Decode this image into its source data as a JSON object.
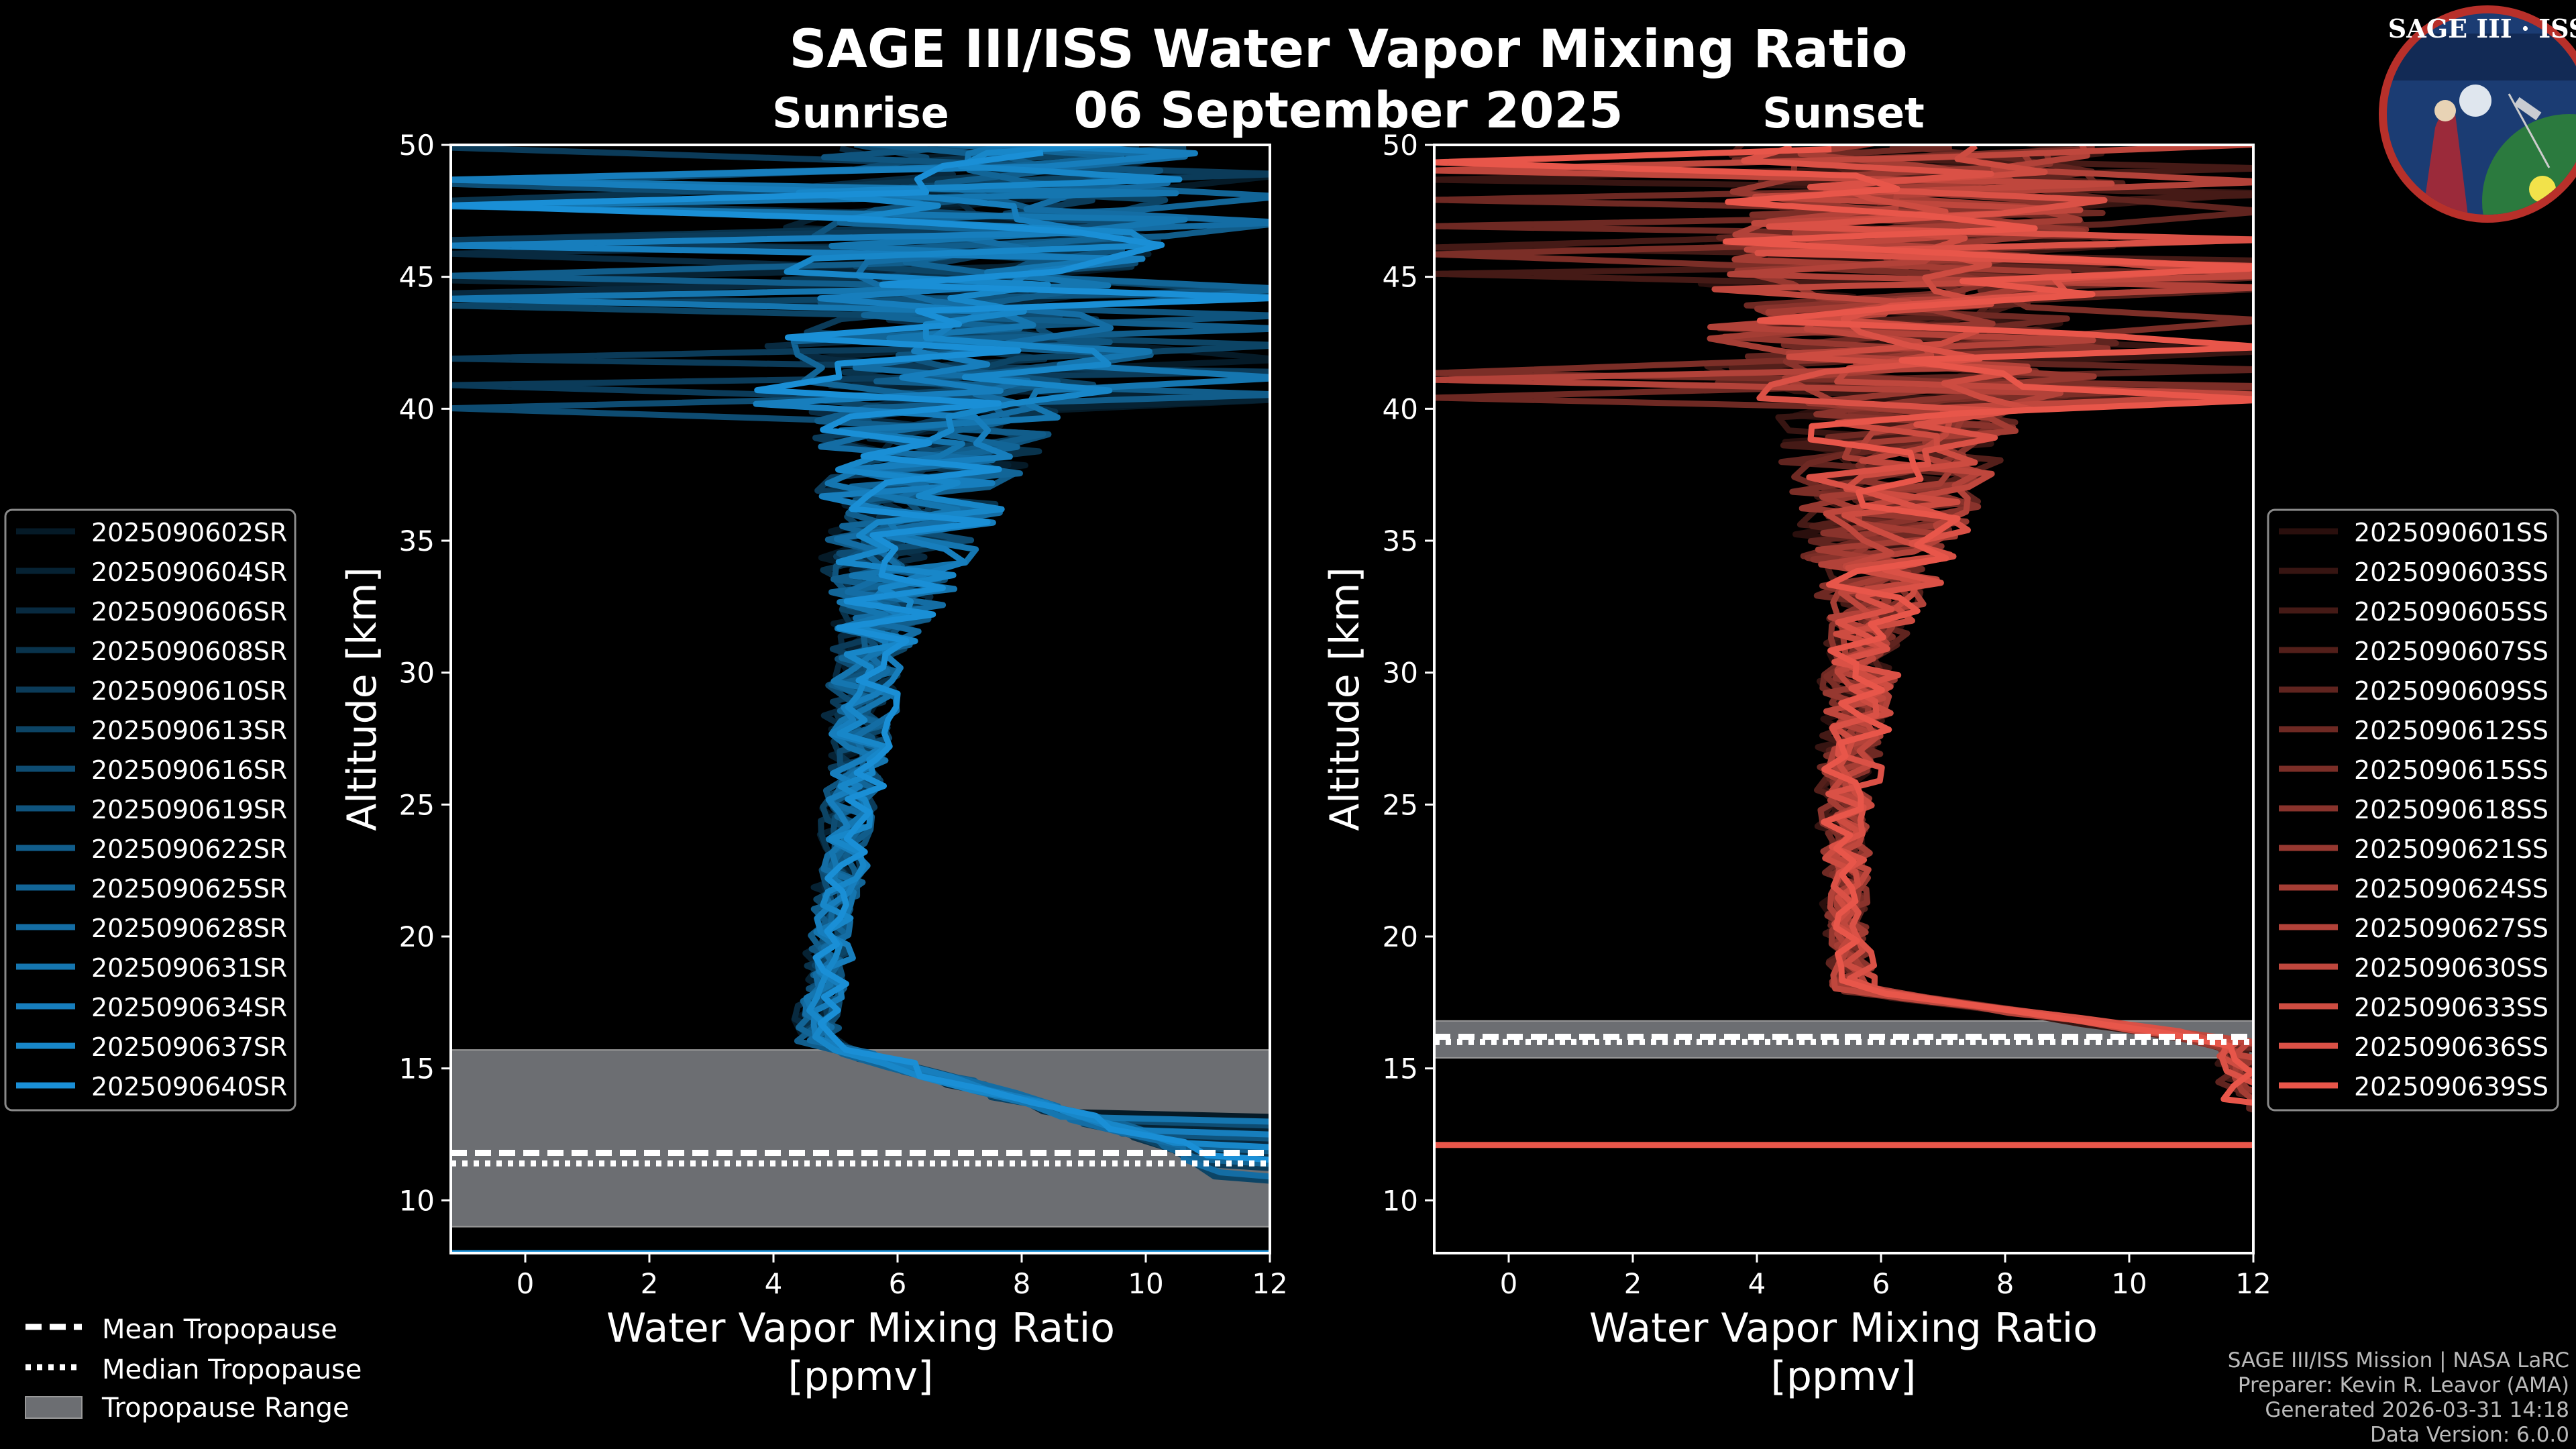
{
  "header": {
    "title": "SAGE III/ISS Water Vapor Mixing Ratio",
    "date": "06 September 2025",
    "sunrise_label": "Sunrise",
    "sunset_label": "Sunset"
  },
  "logo": {
    "text": "SAGE III · ISS"
  },
  "footer": {
    "line1": "SAGE III/ISS Mission | NASA LaRC",
    "line2": "Preparer: Kevin R. Leavor (AMA)",
    "line3": "Generated 2026-03-31 14:18",
    "line4": "Data Version: 6.0.0"
  },
  "bottom_legend": {
    "mean": "Mean Tropopause",
    "median": "Median Tropopause",
    "range": "Tropopause Range"
  },
  "colors": {
    "sunrise": "#1a8fd6",
    "sunset": "#e8564a",
    "tropo_fill": "#6c6e72"
  },
  "chart_data": [
    {
      "type": "line",
      "panel": "sunrise",
      "title": "Sunrise",
      "xlabel": "Water Vapor Mixing Ratio [ppmv]",
      "ylabel": "Altitude [km]",
      "xlim": [
        -1.2,
        12
      ],
      "ylim": [
        8,
        50
      ],
      "xticks": [
        0,
        2,
        4,
        6,
        8,
        10,
        12
      ],
      "yticks": [
        10,
        15,
        20,
        25,
        30,
        35,
        40,
        45,
        50
      ],
      "tropopause": {
        "mean_km": 11.8,
        "median_km": 11.4,
        "range_km": [
          9.0,
          15.7
        ]
      },
      "series": [
        {
          "name": "2025090602SR"
        },
        {
          "name": "2025090604SR"
        },
        {
          "name": "2025090606SR"
        },
        {
          "name": "2025090608SR"
        },
        {
          "name": "2025090610SR"
        },
        {
          "name": "2025090613SR"
        },
        {
          "name": "2025090616SR"
        },
        {
          "name": "2025090619SR"
        },
        {
          "name": "2025090622SR"
        },
        {
          "name": "2025090625SR"
        },
        {
          "name": "2025090628SR"
        },
        {
          "name": "2025090631SR"
        },
        {
          "name": "2025090634SR"
        },
        {
          "name": "2025090637SR"
        },
        {
          "name": "2025090640SR"
        }
      ]
    },
    {
      "type": "line",
      "panel": "sunset",
      "title": "Sunset",
      "xlabel": "Water Vapor Mixing Ratio [ppmv]",
      "ylabel": "Altitude [km]",
      "xlim": [
        -1.2,
        12
      ],
      "ylim": [
        8,
        50
      ],
      "xticks": [
        0,
        2,
        4,
        6,
        8,
        10,
        12
      ],
      "yticks": [
        10,
        15,
        20,
        25,
        30,
        35,
        40,
        45,
        50
      ],
      "tropopause": {
        "mean_km": 16.2,
        "median_km": 16.0,
        "range_km": [
          15.4,
          16.8
        ]
      },
      "series": [
        {
          "name": "2025090601SS"
        },
        {
          "name": "2025090603SS"
        },
        {
          "name": "2025090605SS"
        },
        {
          "name": "2025090607SS"
        },
        {
          "name": "2025090609SS"
        },
        {
          "name": "2025090612SS"
        },
        {
          "name": "2025090615SS"
        },
        {
          "name": "2025090618SS"
        },
        {
          "name": "2025090621SS"
        },
        {
          "name": "2025090624SS"
        },
        {
          "name": "2025090627SS"
        },
        {
          "name": "2025090630SS"
        },
        {
          "name": "2025090633SS"
        },
        {
          "name": "2025090636SS"
        },
        {
          "name": "2025090639SS"
        }
      ]
    }
  ]
}
